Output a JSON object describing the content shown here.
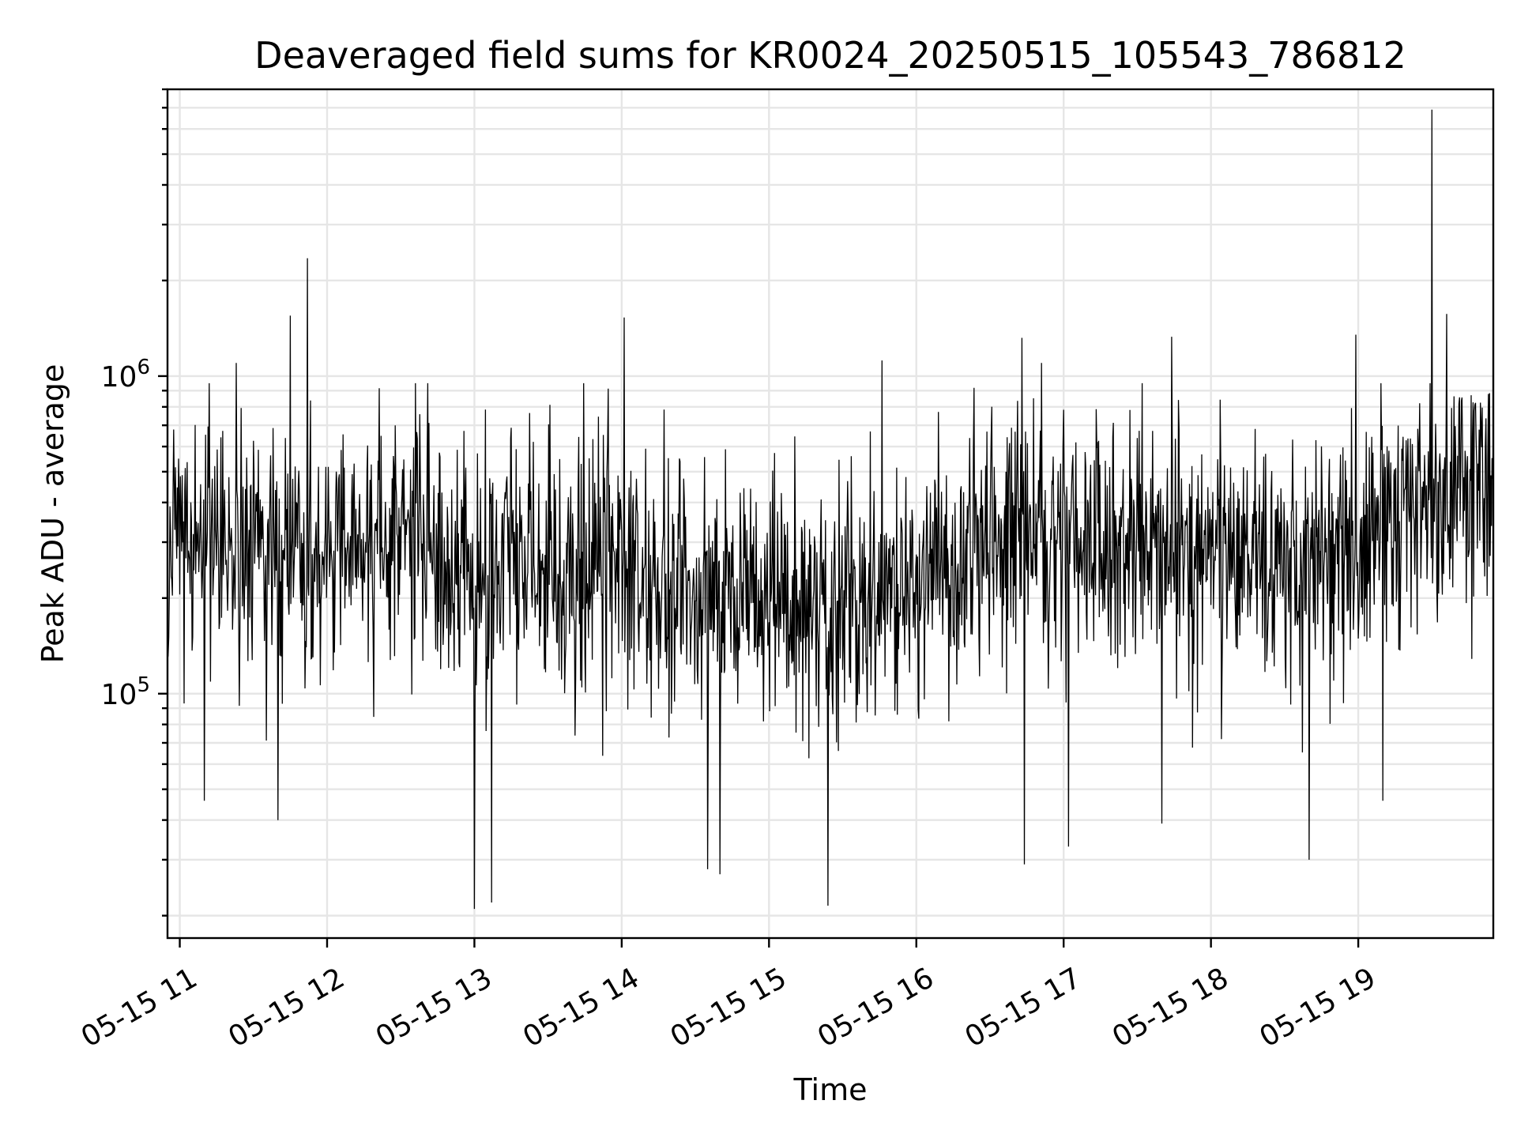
{
  "chart_data": {
    "type": "line",
    "title": "Deaveraged field sums for KR0024_20250515_105543_786812",
    "xlabel": "Time",
    "ylabel": "Peak ADU - average",
    "x_type": "datetime",
    "x_start": "2025-05-15T10:55:43",
    "x_end": "2025-05-15T19:55:00",
    "xlim": [
      "2025-05-15T10:55:00",
      "2025-05-15T19:55:00"
    ],
    "x_ticks": [
      {
        "value": "2025-05-15T11:00",
        "label": "05-15 11"
      },
      {
        "value": "2025-05-15T12:00",
        "label": "05-15 12"
      },
      {
        "value": "2025-05-15T13:00",
        "label": "05-15 13"
      },
      {
        "value": "2025-05-15T14:00",
        "label": "05-15 14"
      },
      {
        "value": "2025-05-15T15:00",
        "label": "05-15 15"
      },
      {
        "value": "2025-05-15T16:00",
        "label": "05-15 16"
      },
      {
        "value": "2025-05-15T17:00",
        "label": "05-15 17"
      },
      {
        "value": "2025-05-15T18:00",
        "label": "05-15 18"
      },
      {
        "value": "2025-05-15T19:00",
        "label": "05-15 19"
      }
    ],
    "y_scale": "log",
    "ylim": [
      17000,
      8000000
    ],
    "y_ticks": [
      {
        "value": 100000,
        "base": "10",
        "exp": "5"
      },
      {
        "value": 1000000,
        "base": "10",
        "exp": "6"
      }
    ],
    "grid": true,
    "series": [
      {
        "color": "#000000",
        "baseline": [
          [
            "2025-05-15T10:55",
            270000
          ],
          [
            "2025-05-15T11:30",
            280000
          ],
          [
            "2025-05-15T12:00",
            270000
          ],
          [
            "2025-05-15T12:30",
            300000
          ],
          [
            "2025-05-15T13:00",
            250000
          ],
          [
            "2025-05-15T13:30",
            230000
          ],
          [
            "2025-05-15T14:00",
            240000
          ],
          [
            "2025-05-15T14:30",
            215000
          ],
          [
            "2025-05-15T15:00",
            200000
          ],
          [
            "2025-05-15T15:30",
            190000
          ],
          [
            "2025-05-15T16:00",
            250000
          ],
          [
            "2025-05-15T16:30",
            290000
          ],
          [
            "2025-05-15T17:00",
            300000
          ],
          [
            "2025-05-15T17:30",
            290000
          ],
          [
            "2025-05-15T18:00",
            280000
          ],
          [
            "2025-05-15T18:30",
            270000
          ],
          [
            "2025-05-15T19:00",
            280000
          ],
          [
            "2025-05-15T19:30",
            400000
          ],
          [
            "2025-05-15T19:55",
            450000
          ]
        ],
        "spikes_high": [
          [
            "2025-05-15T11:23",
            1100000
          ],
          [
            "2025-05-15T11:45",
            1550000
          ],
          [
            "2025-05-15T11:52",
            2350000
          ],
          [
            "2025-05-15T12:41",
            950000
          ],
          [
            "2025-05-15T14:01",
            1530000
          ],
          [
            "2025-05-15T15:46",
            1120000
          ],
          [
            "2025-05-15T16:43",
            1320000
          ],
          [
            "2025-05-15T16:51",
            1100000
          ],
          [
            "2025-05-15T17:44",
            1330000
          ],
          [
            "2025-05-15T18:59",
            1350000
          ],
          [
            "2025-05-15T19:30",
            6900000
          ],
          [
            "2025-05-15T19:36",
            1570000
          ]
        ],
        "spikes_low": [
          [
            "2025-05-15T11:10",
            46000
          ],
          [
            "2025-05-15T11:40",
            40000
          ],
          [
            "2025-05-15T13:00",
            21000
          ],
          [
            "2025-05-15T13:07",
            22000
          ],
          [
            "2025-05-15T14:35",
            28000
          ],
          [
            "2025-05-15T14:40",
            27000
          ],
          [
            "2025-05-15T15:24",
            21500
          ],
          [
            "2025-05-15T16:44",
            29000
          ],
          [
            "2025-05-15T17:02",
            33000
          ],
          [
            "2025-05-15T17:40",
            39000
          ],
          [
            "2025-05-15T18:40",
            30000
          ],
          [
            "2025-05-15T19:10",
            46000
          ]
        ],
        "samples_per_hour": 240
      }
    ]
  }
}
